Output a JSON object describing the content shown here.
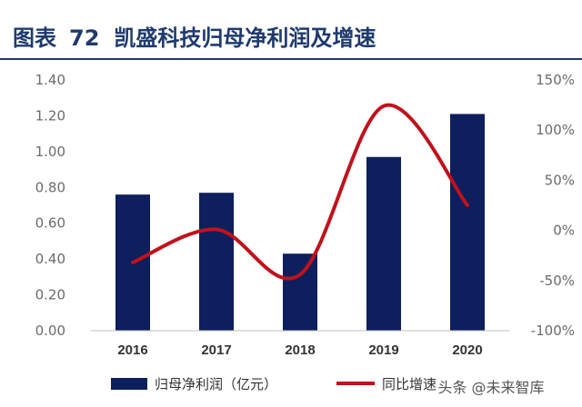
{
  "title": {
    "prefix": "图表",
    "number": "72",
    "text": "凯盛科技归母净利润及增速"
  },
  "chart_data": {
    "type": "bar",
    "categories": [
      "2016",
      "2017",
      "2018",
      "2019",
      "2020"
    ],
    "series": [
      {
        "name": "归母净利润（亿元）",
        "type": "bar",
        "axis": "left",
        "color": "#0d1f5c",
        "values": [
          0.76,
          0.77,
          0.43,
          0.97,
          1.21
        ]
      },
      {
        "name": "同比增速",
        "type": "line",
        "axis": "right",
        "color": "#c0121c",
        "values": [
          -32,
          1,
          -44,
          124,
          25
        ]
      }
    ],
    "y_left": {
      "ylim": [
        0,
        1.4
      ],
      "ticks": [
        "0.00",
        "0.20",
        "0.40",
        "0.60",
        "0.80",
        "1.00",
        "1.20",
        "1.40"
      ]
    },
    "y_right": {
      "ylim": [
        -100,
        150
      ],
      "ticks": [
        "-100%",
        "-50%",
        "0%",
        "50%",
        "100%",
        "150%"
      ]
    },
    "legend_position": "bottom",
    "grid": false
  },
  "watermark": "头条 @未来智库"
}
